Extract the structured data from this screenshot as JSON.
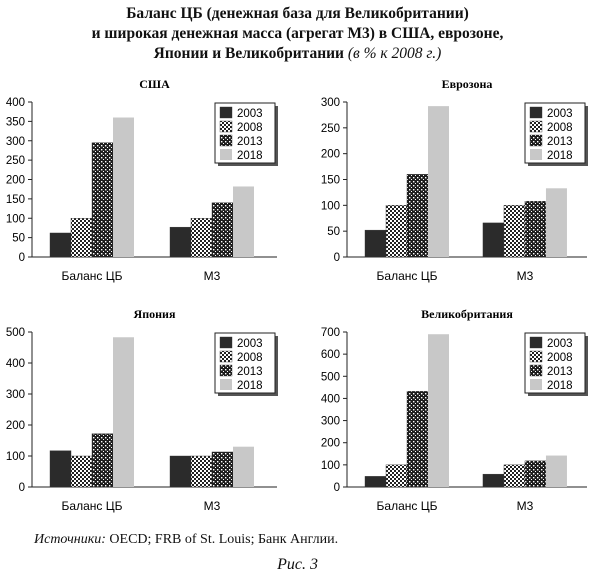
{
  "title": {
    "line1": "Баланс ЦБ (денежная база для Великобритании)",
    "line2": "и широкая денежная масса (агрегат М3) в США, еврозоне,",
    "line3": "Японии и Великобритании",
    "line3_italic": "(в % к 2008 г.)"
  },
  "chart_data": [
    {
      "type": "bar",
      "title": "США",
      "categories": [
        "Баланс ЦБ",
        "М3"
      ],
      "series": [
        {
          "name": "2003",
          "values": [
            62,
            77
          ]
        },
        {
          "name": "2008",
          "values": [
            100,
            100
          ]
        },
        {
          "name": "2013",
          "values": [
            295,
            140
          ]
        },
        {
          "name": "2018",
          "values": [
            360,
            182
          ]
        }
      ],
      "ylim": [
        0,
        400
      ],
      "yticks": [
        "0",
        "50",
        "100",
        "150",
        "200",
        "250",
        "300",
        "350",
        "400"
      ],
      "legend": "right"
    },
    {
      "type": "bar",
      "title": "Еврозона",
      "categories": [
        "Баланс ЦБ",
        "М3"
      ],
      "series": [
        {
          "name": "2003",
          "values": [
            52,
            66
          ]
        },
        {
          "name": "2008",
          "values": [
            100,
            100
          ]
        },
        {
          "name": "2013",
          "values": [
            160,
            108
          ]
        },
        {
          "name": "2018",
          "values": [
            292,
            133
          ]
        }
      ],
      "ylim": [
        0,
        300
      ],
      "yticks": [
        "0",
        "50",
        "100",
        "150",
        "200",
        "250",
        "300"
      ],
      "legend": "right"
    },
    {
      "type": "bar",
      "title": "Япония",
      "categories": [
        "Баланс ЦБ",
        "М3"
      ],
      "series": [
        {
          "name": "2003",
          "values": [
            117,
            100
          ]
        },
        {
          "name": "2008",
          "values": [
            100,
            100
          ]
        },
        {
          "name": "2013",
          "values": [
            172,
            113
          ]
        },
        {
          "name": "2018",
          "values": [
            483,
            130
          ]
        }
      ],
      "ylim": [
        0,
        500
      ],
      "yticks": [
        "0",
        "100",
        "200",
        "300",
        "400",
        "500"
      ],
      "legend": "right"
    },
    {
      "type": "bar",
      "title": "Великобритания",
      "categories": [
        "Баланс ЦБ",
        "М3"
      ],
      "series": [
        {
          "name": "2003",
          "values": [
            48,
            58
          ]
        },
        {
          "name": "2008",
          "values": [
            100,
            100
          ]
        },
        {
          "name": "2013",
          "values": [
            432,
            118
          ]
        },
        {
          "name": "2018",
          "values": [
            690,
            142
          ]
        }
      ],
      "ylim": [
        0,
        700
      ],
      "yticks": [
        "0",
        "100",
        "200",
        "300",
        "400",
        "500",
        "600",
        "700"
      ],
      "legend": "right"
    }
  ],
  "source": {
    "label": "Источники:",
    "text": "OECD; FRB of St. Louis; Банк Англии."
  },
  "figure_caption": "Рис. 3",
  "colors": {
    "2003": "#2b2b2b",
    "2008": "checker",
    "2013": "dark-checker",
    "2018": "#c8c8c8"
  }
}
